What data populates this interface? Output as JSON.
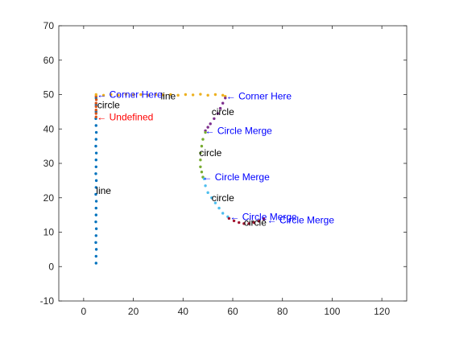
{
  "chart_data": {
    "type": "scatter",
    "title": "",
    "xlabel": "",
    "ylabel": "",
    "xlim": [
      -10,
      130
    ],
    "ylim": [
      -10,
      70
    ],
    "x_ticks": [
      0,
      20,
      40,
      60,
      80,
      100,
      120
    ],
    "y_ticks": [
      -10,
      0,
      10,
      20,
      30,
      40,
      50,
      60,
      70
    ],
    "grid": false,
    "series": [
      {
        "color": "#0072BD",
        "points": [
          [
            5,
            1
          ],
          [
            5,
            3
          ],
          [
            5.1,
            5
          ],
          [
            4.9,
            7
          ],
          [
            5,
            9
          ],
          [
            5.1,
            11
          ],
          [
            4.9,
            13
          ],
          [
            5,
            15
          ],
          [
            5,
            17
          ],
          [
            5.1,
            19
          ],
          [
            4.9,
            21
          ],
          [
            5,
            23
          ],
          [
            5.1,
            25
          ],
          [
            4.9,
            27
          ],
          [
            5,
            29
          ],
          [
            5,
            31
          ],
          [
            5.1,
            33
          ],
          [
            4.9,
            35
          ],
          [
            5,
            37
          ],
          [
            5.1,
            39
          ],
          [
            5,
            41
          ],
          [
            4.9,
            43
          ],
          [
            5,
            45
          ],
          [
            5,
            47
          ],
          [
            5,
            49
          ]
        ]
      },
      {
        "color": "#D95319",
        "points": [
          [
            5,
            49.5
          ],
          [
            5.1,
            48.5
          ],
          [
            5,
            47.5
          ],
          [
            5,
            46.5
          ],
          [
            5,
            45.5
          ],
          [
            5,
            44.5
          ],
          [
            5,
            43.5
          ]
        ]
      },
      {
        "color": "#EDB120",
        "points": [
          [
            5,
            50
          ],
          [
            8,
            49.8
          ],
          [
            11,
            50
          ],
          [
            14,
            49.8
          ],
          [
            17,
            50.1
          ],
          [
            20,
            49.9
          ],
          [
            23,
            50
          ],
          [
            26,
            49.8
          ],
          [
            29,
            50
          ],
          [
            32,
            49.9
          ],
          [
            35,
            50
          ],
          [
            38,
            49.8
          ],
          [
            41,
            50
          ],
          [
            44,
            49.9
          ],
          [
            47,
            50.1
          ],
          [
            50,
            49.8
          ],
          [
            53,
            50
          ],
          [
            56,
            49.8
          ],
          [
            57,
            49.5
          ]
        ]
      },
      {
        "color": "#7E2F8E",
        "points": [
          [
            57,
            49
          ],
          [
            56,
            47.5
          ],
          [
            55,
            46
          ],
          [
            54,
            44.5
          ],
          [
            52.5,
            43
          ],
          [
            51,
            41.5
          ],
          [
            50,
            40.5
          ],
          [
            49,
            39.5
          ]
        ]
      },
      {
        "color": "#77AC30",
        "points": [
          [
            49,
            39
          ],
          [
            48,
            37
          ],
          [
            47.5,
            35
          ],
          [
            47,
            33
          ],
          [
            47,
            31
          ],
          [
            47,
            29
          ],
          [
            47.5,
            27.5
          ],
          [
            48,
            26
          ]
        ]
      },
      {
        "color": "#4DBEEE",
        "points": [
          [
            48.5,
            25.5
          ],
          [
            49,
            23.5
          ],
          [
            50,
            21.5
          ],
          [
            51.5,
            20
          ],
          [
            53,
            18.5
          ],
          [
            54.5,
            17
          ],
          [
            56,
            15.5
          ],
          [
            58,
            14.5
          ]
        ]
      },
      {
        "color": "#A2142F",
        "points": [
          [
            58.5,
            14
          ],
          [
            60.5,
            13.3
          ],
          [
            62.5,
            12.8
          ],
          [
            64.5,
            12.5
          ],
          [
            66.5,
            12.5
          ],
          [
            68.5,
            12.8
          ],
          [
            70.5,
            13.2
          ],
          [
            72.5,
            13.8
          ]
        ]
      }
    ],
    "annotations": [
      {
        "text": "Corner Here",
        "x": 5,
        "y": 50,
        "color": "#0000FF"
      },
      {
        "text": "Undefined",
        "x": 5,
        "y": 43.5,
        "color": "#FF0000"
      },
      {
        "text": "Corner Here",
        "x": 57,
        "y": 49.5,
        "color": "#0000FF"
      },
      {
        "text": "Circle Merge",
        "x": 48.5,
        "y": 39.5,
        "color": "#0000FF"
      },
      {
        "text": "Circle Merge",
        "x": 47.5,
        "y": 26,
        "color": "#0000FF"
      },
      {
        "text": "Circle Merge",
        "x": 58.5,
        "y": 14.5,
        "color": "#0000FF"
      },
      {
        "text": "Circle Merge",
        "x": 73.5,
        "y": 13.5,
        "color": "#0000FF"
      }
    ],
    "segment_labels": [
      {
        "text": "line",
        "x": 5,
        "y": 22
      },
      {
        "text": "circle",
        "x": 5.5,
        "y": 47
      },
      {
        "text": "line",
        "x": 31,
        "y": 49.5
      },
      {
        "text": "circle",
        "x": 51.5,
        "y": 45
      },
      {
        "text": "circle",
        "x": 46.5,
        "y": 33
      },
      {
        "text": "circle",
        "x": 51.5,
        "y": 20
      },
      {
        "text": "circle",
        "x": 64.5,
        "y": 12.8
      }
    ]
  }
}
